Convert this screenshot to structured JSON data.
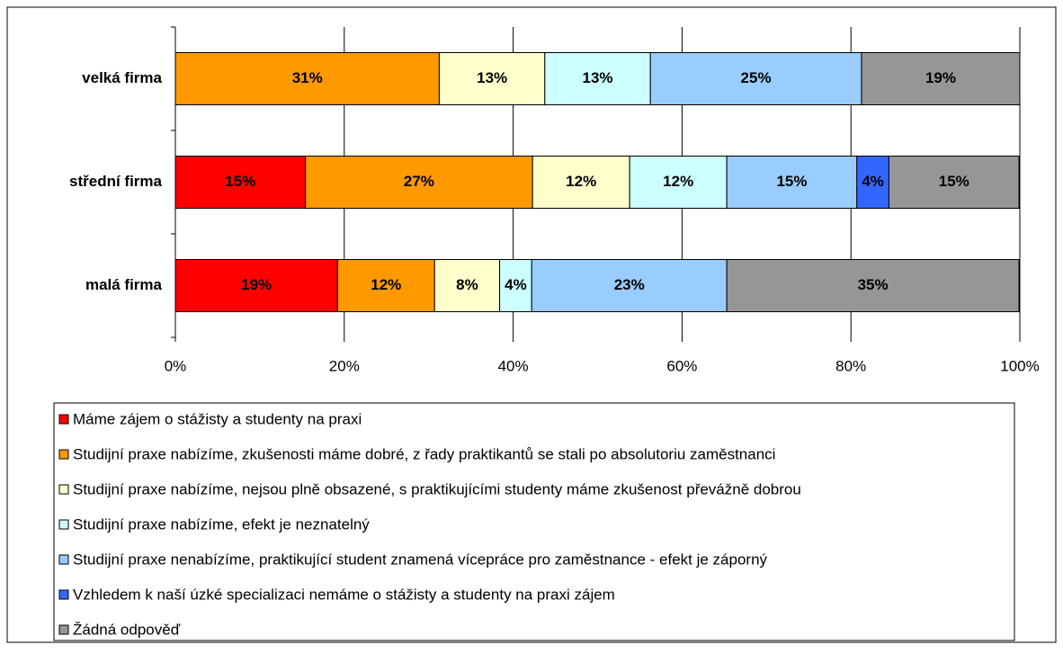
{
  "chart_data": {
    "type": "stacked_barh",
    "categories": [
      "velká firma",
      "střední firma",
      "malá firma"
    ],
    "series": [
      {
        "name": "Máme zájem o stážisty a studenty na praxi",
        "color": "#ff0000",
        "values": [
          null,
          15.4,
          19.2
        ],
        "value_labels": [
          null,
          "15%",
          "19%"
        ]
      },
      {
        "name": "Studijní praxe nabízíme, zkušenosti máme dobré, z řady praktikantů se stali po absolutoriu zaměstnanci",
        "color": "#ff9900",
        "values": [
          31.25,
          26.9,
          11.5
        ],
        "value_labels": [
          "31%",
          "27%",
          "12%"
        ]
      },
      {
        "name": "Studijní praxe nabízíme, nejsou plně obsazené, s praktikujícími studenty máme zkušenost převážně dobrou",
        "color": "#ffffcc",
        "values": [
          12.5,
          11.5,
          7.7
        ],
        "value_labels": [
          "13%",
          "12%",
          "8%"
        ]
      },
      {
        "name": "Studijní praxe nabízíme, efekt je neznatelný",
        "color": "#ccffff",
        "values": [
          12.5,
          11.5,
          3.8
        ],
        "value_labels": [
          "13%",
          "12%",
          "4%"
        ]
      },
      {
        "name": "Studijní praxe nenabízíme, praktikující student znamená vícepráce pro zaměstnance - efekt je záporný",
        "color": "#99ccff",
        "values": [
          25,
          15.4,
          23.1
        ],
        "value_labels": [
          "25%",
          "15%",
          "23%"
        ]
      },
      {
        "name": "Vzhledem k naší úzké specializaci nemáme o stážisty a studenty na praxi zájem",
        "color": "#3366ff",
        "values": [
          null,
          3.8,
          null
        ],
        "value_labels": [
          null,
          "4%",
          null
        ]
      },
      {
        "name": "Žádná odpověď",
        "color": "#969696",
        "values": [
          18.75,
          15.4,
          34.6
        ],
        "value_labels": [
          "19%",
          "15%",
          "35%"
        ]
      }
    ],
    "xlim": [
      0,
      100
    ],
    "xticks": [
      {
        "value": 0,
        "label": "0%"
      },
      {
        "value": 20,
        "label": "20%"
      },
      {
        "value": 40,
        "label": "40%"
      },
      {
        "value": 60,
        "label": "60%"
      },
      {
        "value": 80,
        "label": "80%"
      },
      {
        "value": 100,
        "label": "100%"
      }
    ],
    "grid": true,
    "legend": "bottom"
  }
}
